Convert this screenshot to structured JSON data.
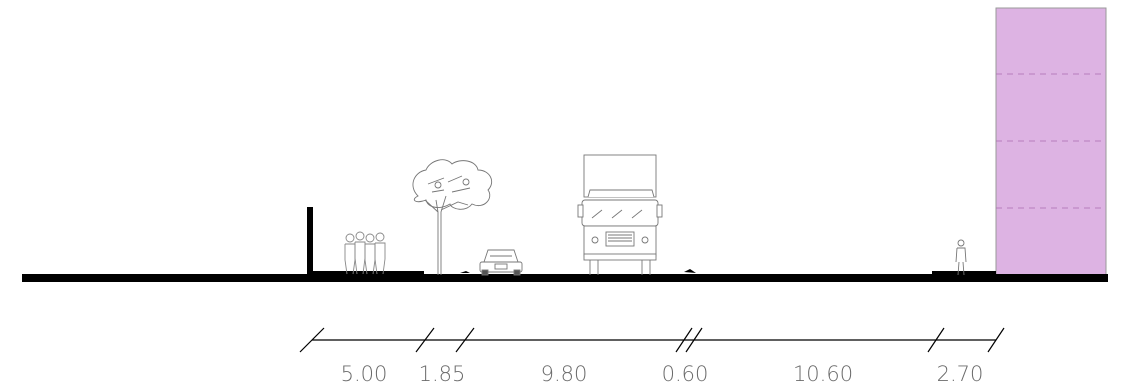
{
  "diagram": {
    "type": "street-cross-section",
    "building_color": "#ddb3e3",
    "ground_color": "#000000",
    "dimensions": [
      {
        "label": "5.00",
        "value": 5.0
      },
      {
        "label": "1.85",
        "value": 1.85
      },
      {
        "label": "9.80",
        "value": 9.8
      },
      {
        "label": "0.60",
        "value": 0.6
      },
      {
        "label": "10.60",
        "value": 10.6
      },
      {
        "label": "2.70",
        "value": 2.7
      }
    ],
    "elements": [
      "wall-post",
      "pedestrian-group",
      "street-tree",
      "car",
      "truck",
      "cyclist-person",
      "building"
    ]
  }
}
